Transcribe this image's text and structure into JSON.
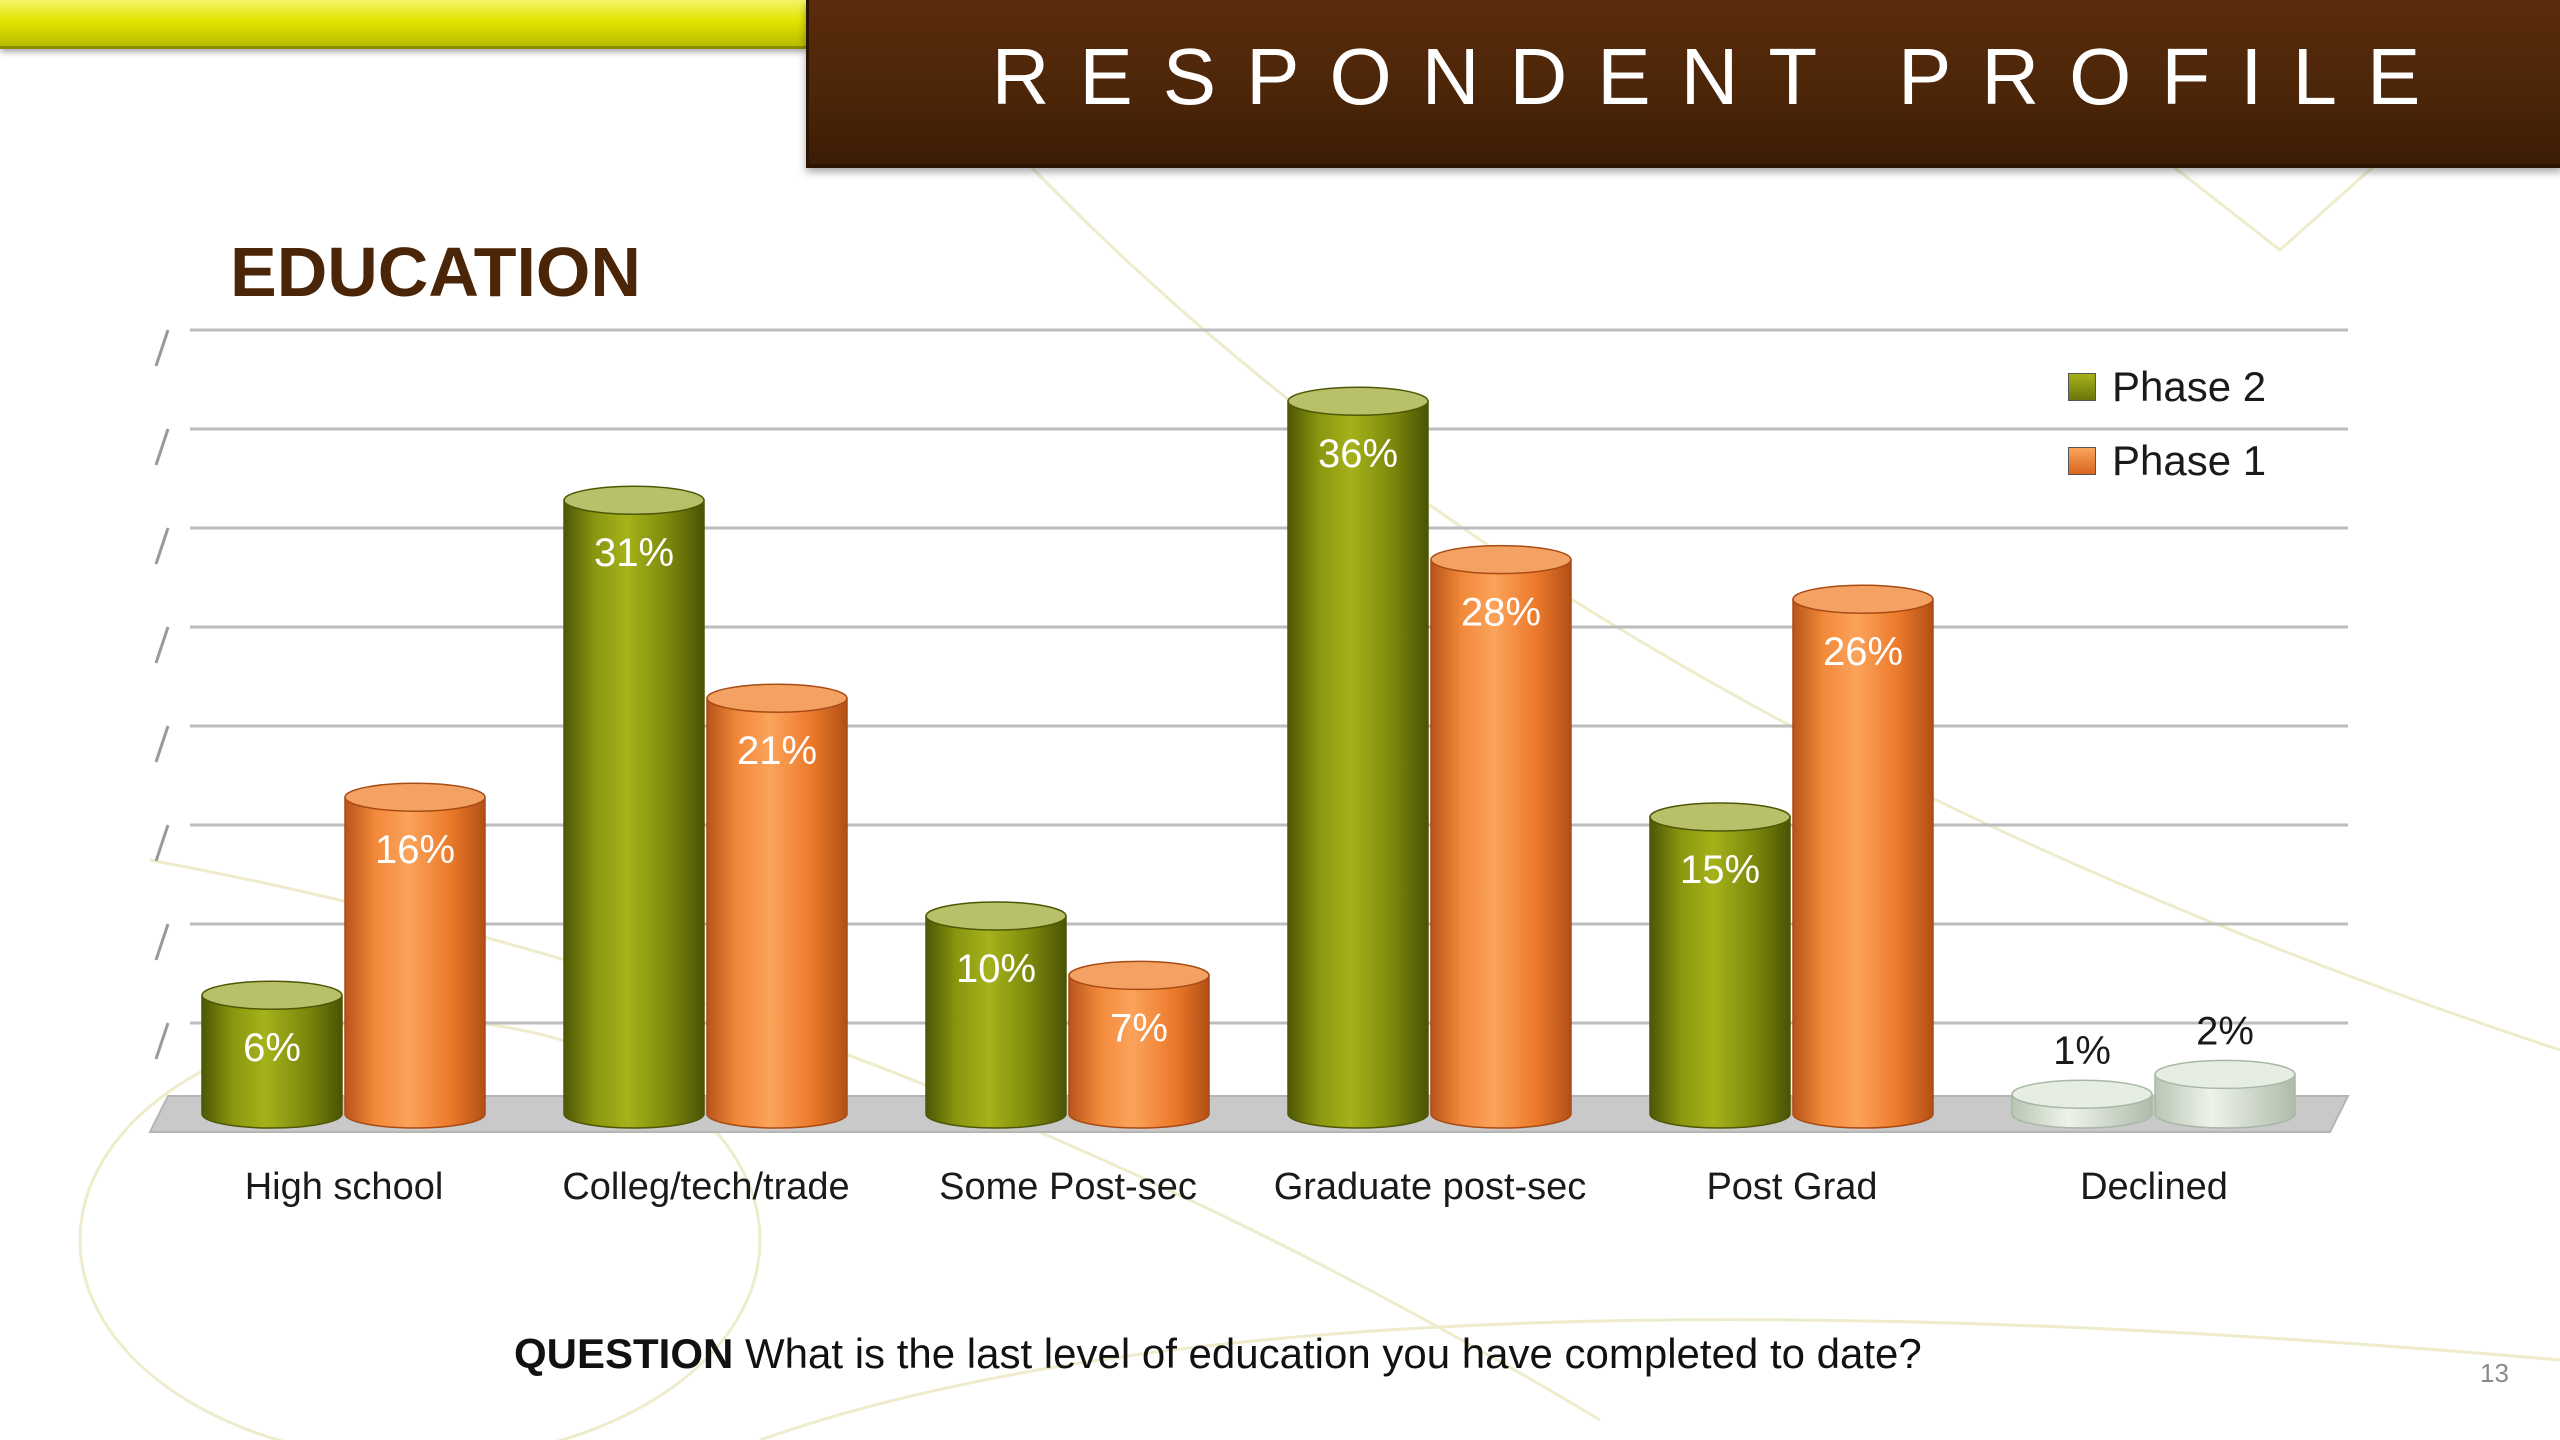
{
  "header": {
    "title": "RESPONDENT PROFILE"
  },
  "section_heading": "EDUCATION",
  "question": {
    "label": "QUESTION",
    "text": "What is the last level of education you have completed to date?"
  },
  "page_number": "13",
  "colors": {
    "title_bar": "#4b2508",
    "accent_yellow": "#e3e400",
    "phase2": "#7f8a0c",
    "phase1": "#f07f2a",
    "declined_bar": "#d9e3d4"
  },
  "chart_data": {
    "type": "bar",
    "title": "EDUCATION",
    "categories": [
      "High school",
      "Colleg/tech/trade",
      "Some Post-sec",
      "Graduate post-sec",
      "Post Grad",
      "Declined"
    ],
    "series": [
      {
        "name": "Phase 2",
        "values": [
          6,
          31,
          10,
          36,
          15,
          1
        ],
        "labels": [
          "6%",
          "31%",
          "10%",
          "36%",
          "15%",
          "1%"
        ]
      },
      {
        "name": "Phase 1",
        "values": [
          16,
          21,
          7,
          28,
          26,
          2
        ],
        "labels": [
          "16%",
          "21%",
          "7%",
          "28%",
          "26%",
          "2%"
        ]
      }
    ],
    "ylim": [
      0,
      40
    ],
    "grid": true,
    "legend": "top-right",
    "style": "3d-cylinder"
  }
}
